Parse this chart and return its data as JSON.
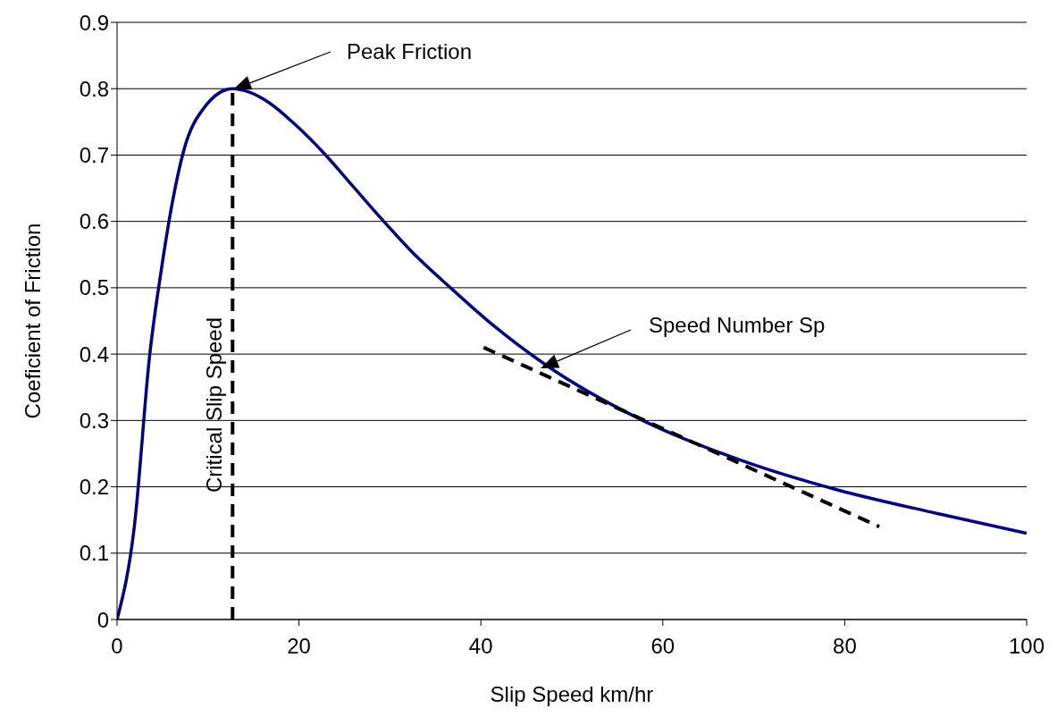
{
  "chart_data": {
    "type": "line",
    "xlabel": "Slip Speed km/hr",
    "ylabel": "Coeficient of Friction",
    "xlim": [
      0,
      100
    ],
    "xticks": [
      0,
      20,
      40,
      60,
      80,
      100
    ],
    "ylim": [
      0,
      0.9
    ],
    "yticks": [
      0,
      0.1,
      0.2,
      0.3,
      0.4,
      0.5,
      0.6,
      0.7,
      0.8,
      0.9
    ],
    "grid": "y",
    "series": [
      {
        "color": "#000080",
        "line_style": "solid",
        "x": [
          0,
          1.9,
          3.6,
          4.9,
          6.1,
          7.4,
          9.5,
          12.7,
          14.5,
          16.8,
          19.5,
          22.8,
          26,
          29.2,
          32.5,
          36.9,
          41.3,
          47,
          57.8,
          68.6,
          79.3,
          90.1,
          100
        ],
        "values": [
          0,
          0.14,
          0.4,
          0.53,
          0.63,
          0.71,
          0.77,
          0.8,
          0.795,
          0.778,
          0.747,
          0.702,
          0.652,
          0.602,
          0.553,
          0.497,
          0.444,
          0.385,
          0.3,
          0.24,
          0.195,
          0.16,
          0.13
        ]
      },
      {
        "color": "#000000",
        "line_style": "dashed",
        "x": [
          40.3,
          83.8
        ],
        "values": [
          0.41,
          0.14
        ]
      },
      {
        "color": "#000000",
        "line_style": "dashed",
        "x": [
          12.7,
          12.7
        ],
        "values": [
          0,
          0.8
        ]
      }
    ],
    "annotations": [
      "Peak Friction",
      "Speed Number Sp",
      "Critical Slip Speed"
    ]
  }
}
